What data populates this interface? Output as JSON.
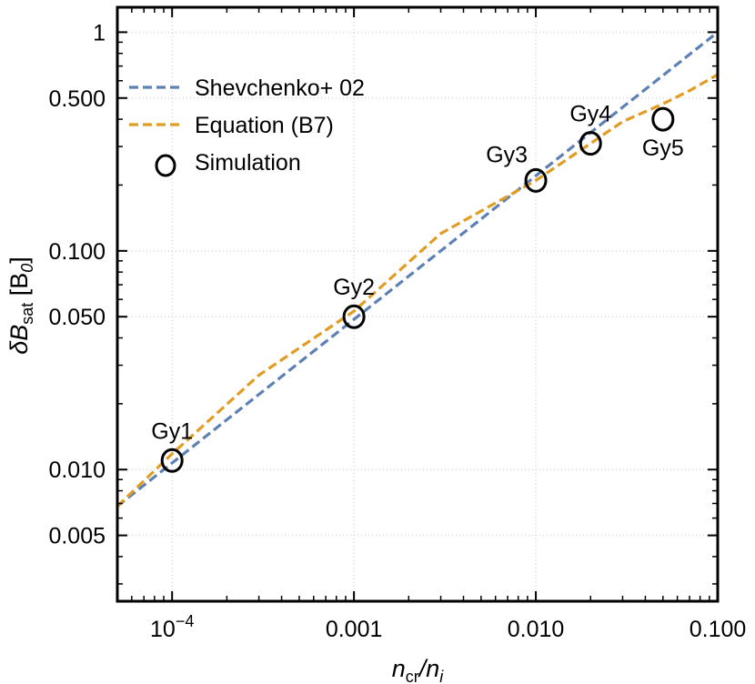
{
  "chart_data": {
    "type": "line",
    "xscale": "log",
    "yscale": "log",
    "xlim": [
      5e-05,
      0.1
    ],
    "ylim": [
      0.0025,
      1.3
    ],
    "xlabel": {
      "main": "n",
      "sub1": "cr",
      "slash": "/",
      "main2": "n",
      "sub2": "i"
    },
    "ylabel": {
      "main": "δB",
      "sub": "sat",
      "unit": " [B",
      "unit_sub": "0",
      "unit_end": "]"
    },
    "xticks": [
      {
        "value": 0.0001,
        "label": "10",
        "exp": "−4"
      },
      {
        "value": 0.001,
        "label": "0.001"
      },
      {
        "value": 0.01,
        "label": "0.010"
      },
      {
        "value": 0.1,
        "label": "0.100"
      }
    ],
    "yticks": [
      {
        "value": 1,
        "label": "1"
      },
      {
        "value": 0.5,
        "label": "0.500"
      },
      {
        "value": 0.1,
        "label": "0.100"
      },
      {
        "value": 0.05,
        "label": "0.050"
      },
      {
        "value": 0.01,
        "label": "0.010"
      },
      {
        "value": 0.005,
        "label": "0.005"
      }
    ],
    "series": [
      {
        "name": "Shevchenko+ 02",
        "style": "dashed",
        "color": "#5E81B5",
        "x": [
          5e-05,
          0.1
        ],
        "y": [
          0.0068,
          1.0
        ]
      },
      {
        "name": "Equation (B7)",
        "style": "dashed",
        "color": "#E19C24",
        "x": [
          5e-05,
          0.0001,
          0.0003,
          0.001,
          0.003,
          0.01,
          0.02,
          0.03,
          0.05,
          0.07,
          0.1
        ],
        "y": [
          0.0068,
          0.0118,
          0.027,
          0.053,
          0.12,
          0.21,
          0.31,
          0.39,
          0.47,
          0.54,
          0.64
        ]
      },
      {
        "name": "Simulation",
        "marker": "circle-open",
        "color": "#000000",
        "points": [
          {
            "label": "Gy1",
            "x": 0.0001,
            "y": 0.011,
            "label_pos": "above"
          },
          {
            "label": "Gy2",
            "x": 0.001,
            "y": 0.05,
            "label_pos": "above"
          },
          {
            "label": "Gy3",
            "x": 0.01,
            "y": 0.21,
            "label_pos": "upper-left"
          },
          {
            "label": "Gy4",
            "x": 0.02,
            "y": 0.31,
            "label_pos": "above"
          },
          {
            "label": "Gy5",
            "x": 0.05,
            "y": 0.4,
            "label_pos": "below"
          }
        ]
      }
    ],
    "legend": {
      "position": "top-left",
      "entries": [
        {
          "label": "Shevchenko+ 02",
          "kind": "dash",
          "color": "#5E81B5"
        },
        {
          "label": "Equation (B7)",
          "kind": "dash",
          "color": "#E19C24"
        },
        {
          "label": "Simulation",
          "kind": "circle",
          "color": "#000000"
        }
      ]
    }
  }
}
